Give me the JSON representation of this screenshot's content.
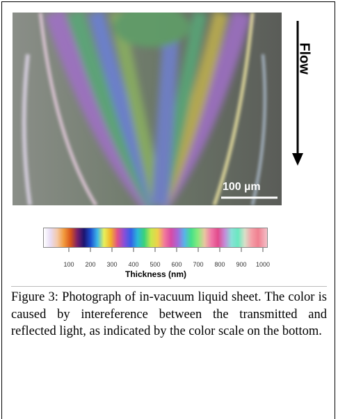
{
  "figure": {
    "flow_label": "Flow",
    "scale_bar_label": "100 µm"
  },
  "color_scale": {
    "ticks": [
      100,
      200,
      300,
      400,
      500,
      600,
      700,
      800,
      900,
      1000
    ],
    "axis_label": "Thickness (nm)"
  },
  "caption": "Figure 3: Photograph of in-vacuum liquid sheet. The color is caused by intereference between the transmitted and reflected light, as indicated by the color scale on the bottom."
}
